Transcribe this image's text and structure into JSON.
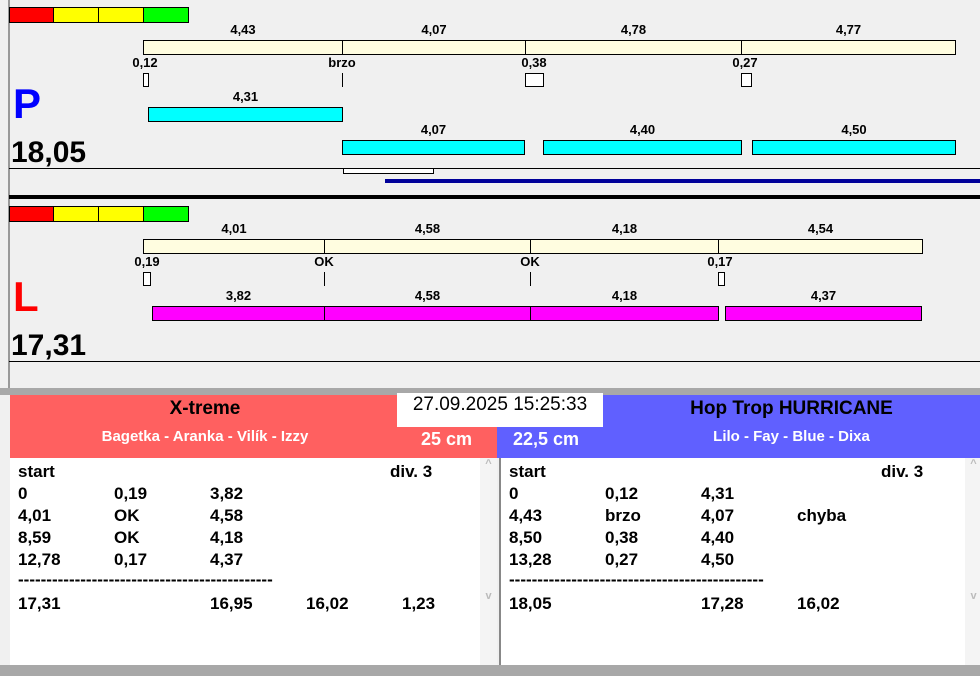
{
  "colors": {
    "bar_base": "#fffde0",
    "p_lane": "#00ffff",
    "l_lane": "#ff00ff",
    "p_letter": "#0000ff",
    "l_letter": "#ff0000",
    "red_team": "#ff6060",
    "blue_team": "#6060ff",
    "progress": "#000099"
  },
  "p_panel": {
    "letter": "P",
    "total": "18,05",
    "top_labels": [
      "4,43",
      "4,07",
      "4,78",
      "4,77"
    ],
    "mid_labels": [
      "0,12",
      "brzo",
      "0,38",
      "0,27"
    ],
    "lane_labels": [
      "4,31",
      "4,07",
      "4,40",
      "4,50"
    ]
  },
  "l_panel": {
    "letter": "L",
    "total": "17,31",
    "top_labels": [
      "4,01",
      "4,58",
      "4,18",
      "4,54"
    ],
    "mid_labels": [
      "0,19",
      "OK",
      "OK",
      "0,17"
    ],
    "lane_labels": [
      "3,82",
      "4,58",
      "4,18",
      "4,37"
    ]
  },
  "datetime": "27.09.2025 15:25:33",
  "left_team": {
    "name": "X-treme",
    "members": "Bagetka - Aranka - Vilík - Izzy",
    "height": "25 cm",
    "header": [
      "start",
      "div.  3"
    ],
    "rows": [
      [
        "0",
        "0,19",
        "3,82",
        ""
      ],
      [
        "4,01",
        "OK",
        "4,58",
        ""
      ],
      [
        "8,59",
        "OK",
        "4,18",
        ""
      ],
      [
        "12,78",
        "0,17",
        "4,37",
        ""
      ]
    ],
    "separator": "---------------------------------------------",
    "totals": [
      "17,31",
      "",
      "16,95",
      "16,02",
      "1,23"
    ]
  },
  "right_team": {
    "name": "Hop Trop HURRICANE",
    "members": "Lilo - Fay - Blue - Dixa",
    "height": "22,5 cm",
    "header": [
      "start",
      "div.  3"
    ],
    "rows": [
      [
        "0",
        "0,12",
        "4,31",
        ""
      ],
      [
        "4,43",
        "brzo",
        "4,07",
        "chyba"
      ],
      [
        "8,50",
        "0,38",
        "4,40",
        ""
      ],
      [
        "13,28",
        "0,27",
        "4,50",
        ""
      ]
    ],
    "separator": "---------------------------------------------",
    "totals": [
      "18,05",
      "",
      "17,28",
      "16,02",
      ""
    ]
  }
}
